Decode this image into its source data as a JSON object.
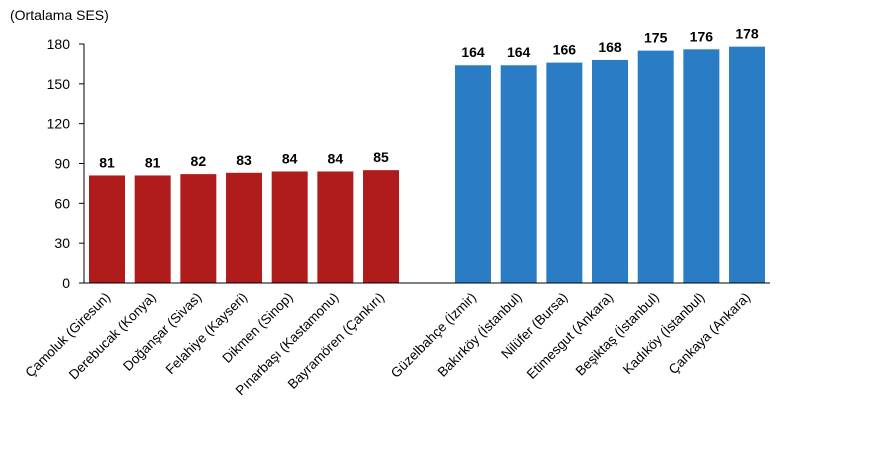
{
  "chart_data": {
    "type": "bar",
    "ylabel": "(Ortalama SES)",
    "ylim": [
      0,
      180
    ],
    "yticks": [
      0,
      30,
      60,
      90,
      120,
      150,
      180
    ],
    "colors": {
      "low": "#B01C1C",
      "high": "#2A7DC5",
      "axis": "#000000"
    },
    "groups": [
      {
        "name": "low",
        "categories": [
          "Çamoluk (Giresun)",
          "Derebucak (Konya)",
          "Doğanşar (Sivas)",
          "Felahiye (Kayseri)",
          "Dikmen (Sinop)",
          "Pınarbaşı (Kastamonu)",
          "Bayramören (Çankırı)"
        ],
        "values": [
          81,
          81,
          82,
          83,
          84,
          84,
          85
        ]
      },
      {
        "name": "high",
        "categories": [
          "Güzelbahçe (İzmir)",
          "Bakırköy (İstanbul)",
          "Nilüfer (Bursa)",
          "Etimesgut (Ankara)",
          "Beşiktaş (İstanbul)",
          "Kadıköy (İstanbul)",
          "Çankaya (Ankara)"
        ],
        "values": [
          164,
          164,
          166,
          168,
          175,
          176,
          178
        ]
      }
    ]
  }
}
